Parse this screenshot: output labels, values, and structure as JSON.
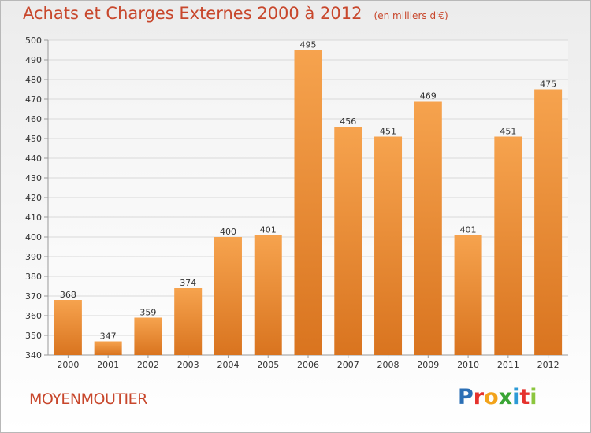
{
  "chart_data": {
    "type": "bar",
    "title": "Achats et Charges Externes 2000 à 2012",
    "unit": "(en milliers d'€)",
    "categories": [
      "2000",
      "2001",
      "2002",
      "2003",
      "2004",
      "2005",
      "2006",
      "2007",
      "2008",
      "2009",
      "2010",
      "2011",
      "2012"
    ],
    "values": [
      368,
      347,
      359,
      374,
      400,
      401,
      495,
      456,
      451,
      469,
      401,
      451,
      475
    ],
    "data_labels": [
      "368",
      "347",
      "359",
      "374",
      "400",
      "401",
      "495",
      "456",
      "451",
      "469",
      "401",
      "451",
      "475"
    ],
    "ylim": [
      340,
      500
    ],
    "yticks": [
      "340",
      "350",
      "360",
      "370",
      "380",
      "390",
      "400",
      "410",
      "420",
      "430",
      "440",
      "450",
      "460",
      "470",
      "480",
      "490",
      "500"
    ],
    "grid": true,
    "legend": "none",
    "colors": {
      "bar_light": "#f6a34e",
      "bar_dark": "#d9741f",
      "title": "#c8472c",
      "grid": "#d9d9d9"
    }
  },
  "footer": {
    "commune": "MOYENMOUTIER",
    "logo_letters": [
      {
        "ch": "P",
        "color": "#2c6fb5"
      },
      {
        "ch": "r",
        "color": "#e5322d"
      },
      {
        "ch": "o",
        "color": "#f2a31b"
      },
      {
        "ch": "x",
        "color": "#3aa535"
      },
      {
        "ch": "i",
        "color": "#2c9ad6"
      },
      {
        "ch": "t",
        "color": "#e5322d"
      },
      {
        "ch": "i",
        "color": "#8cc63e"
      }
    ]
  }
}
